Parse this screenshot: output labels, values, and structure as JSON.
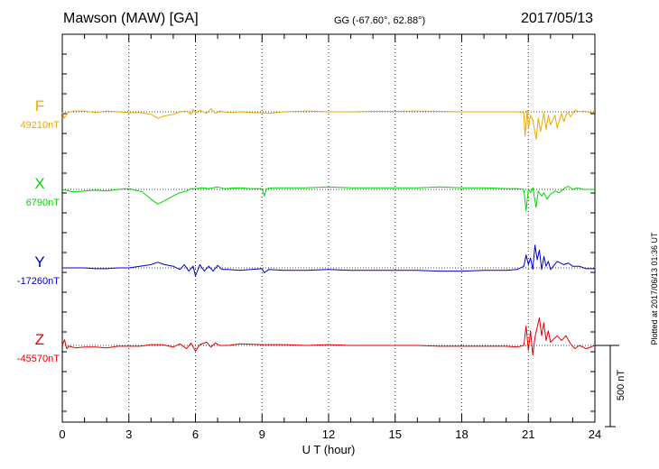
{
  "header": {
    "title": "Mawson (MAW)  [GA]",
    "coords": "GG (-67.60°,  62.88°)",
    "date": "2017/05/13"
  },
  "footer_note": "Plotted at 2017/06/13 01:36 UT",
  "scale_bar": {
    "label": "500 nT",
    "value": 500
  },
  "colors": {
    "F": "#f0a800",
    "X": "#00d800",
    "Y": "#0000cc",
    "Z": "#e00000"
  },
  "chart_data": {
    "type": "line",
    "xlabel": "U T (hour)",
    "xlim": [
      0,
      24
    ],
    "xticks": [
      "0",
      "3",
      "6",
      "9",
      "12",
      "15",
      "18",
      "21",
      "24"
    ],
    "series": [
      {
        "name": "F",
        "baseline_label": "49210nT",
        "points": [
          [
            0.0,
            0
          ],
          [
            0.08,
            -40
          ],
          [
            0.25,
            -5
          ],
          [
            0.5,
            5
          ],
          [
            1.0,
            5
          ],
          [
            1.5,
            -5
          ],
          [
            2.0,
            5
          ],
          [
            2.5,
            0
          ],
          [
            3.0,
            -5
          ],
          [
            3.5,
            -5
          ],
          [
            4.0,
            -15
          ],
          [
            4.3,
            -40
          ],
          [
            4.6,
            -25
          ],
          [
            5.0,
            -15
          ],
          [
            5.3,
            0
          ],
          [
            5.6,
            5
          ],
          [
            5.8,
            -15
          ],
          [
            5.9,
            15
          ],
          [
            6.0,
            -5
          ],
          [
            6.2,
            10
          ],
          [
            6.5,
            -10
          ],
          [
            6.7,
            20
          ],
          [
            6.9,
            -10
          ],
          [
            7.1,
            5
          ],
          [
            7.5,
            -5
          ],
          [
            8.0,
            0
          ],
          [
            8.5,
            -5
          ],
          [
            9.0,
            -5
          ],
          [
            9.3,
            -10
          ],
          [
            10,
            0
          ],
          [
            11,
            5
          ],
          [
            12,
            0
          ],
          [
            13,
            0
          ],
          [
            14,
            3
          ],
          [
            15,
            3
          ],
          [
            16,
            5
          ],
          [
            17,
            3
          ],
          [
            18,
            0
          ],
          [
            19,
            0
          ],
          [
            20,
            0
          ],
          [
            20.5,
            0
          ],
          [
            20.8,
            -5
          ],
          [
            20.85,
            -150
          ],
          [
            20.95,
            10
          ],
          [
            21.0,
            -100
          ],
          [
            21.1,
            -20
          ],
          [
            21.2,
            -50
          ],
          [
            21.35,
            -170
          ],
          [
            21.45,
            -40
          ],
          [
            21.55,
            -120
          ],
          [
            21.7,
            -5
          ],
          [
            21.8,
            -110
          ],
          [
            21.9,
            -20
          ],
          [
            22.0,
            -80
          ],
          [
            22.2,
            -20
          ],
          [
            22.3,
            -100
          ],
          [
            22.5,
            -10
          ],
          [
            22.6,
            -60
          ],
          [
            22.7,
            -20
          ],
          [
            22.8,
            -5
          ],
          [
            22.9,
            -30
          ],
          [
            23.1,
            10
          ],
          [
            23.3,
            0
          ],
          [
            23.5,
            5
          ],
          [
            23.8,
            -5
          ],
          [
            24,
            -5
          ]
        ]
      },
      {
        "name": "X",
        "baseline_label": "6790nT",
        "points": [
          [
            0.0,
            0
          ],
          [
            0.5,
            -15
          ],
          [
            1.0,
            -10
          ],
          [
            1.5,
            -5
          ],
          [
            2.0,
            -10
          ],
          [
            2.5,
            0
          ],
          [
            3.0,
            5
          ],
          [
            3.3,
            -5
          ],
          [
            3.6,
            -15
          ],
          [
            4.0,
            -60
          ],
          [
            4.3,
            -90
          ],
          [
            4.6,
            -70
          ],
          [
            5.0,
            -40
          ],
          [
            5.3,
            -20
          ],
          [
            5.6,
            -10
          ],
          [
            5.8,
            5
          ],
          [
            6.0,
            5
          ],
          [
            6.3,
            10
          ],
          [
            6.6,
            5
          ],
          [
            7.0,
            15
          ],
          [
            7.3,
            5
          ],
          [
            8.0,
            10
          ],
          [
            8.5,
            5
          ],
          [
            9.0,
            5
          ],
          [
            9.1,
            -40
          ],
          [
            9.2,
            5
          ],
          [
            9.5,
            10
          ],
          [
            10,
            10
          ],
          [
            11,
            10
          ],
          [
            12,
            15
          ],
          [
            13,
            10
          ],
          [
            14,
            10
          ],
          [
            15,
            10
          ],
          [
            16,
            10
          ],
          [
            17,
            15
          ],
          [
            18,
            10
          ],
          [
            19,
            10
          ],
          [
            20,
            5
          ],
          [
            20.5,
            5
          ],
          [
            20.8,
            0
          ],
          [
            20.9,
            -130
          ],
          [
            21.0,
            5
          ],
          [
            21.1,
            -20
          ],
          [
            21.2,
            10
          ],
          [
            21.35,
            -110
          ],
          [
            21.45,
            -10
          ],
          [
            21.6,
            -40
          ],
          [
            21.7,
            -20
          ],
          [
            21.85,
            -60
          ],
          [
            22.0,
            -30
          ],
          [
            22.2,
            -10
          ],
          [
            22.4,
            -20
          ],
          [
            22.6,
            5
          ],
          [
            22.8,
            20
          ],
          [
            23.0,
            0
          ],
          [
            23.2,
            10
          ],
          [
            23.5,
            0
          ],
          [
            24,
            0
          ]
        ]
      },
      {
        "name": "Y",
        "baseline_label": "-17260nT",
        "points": [
          [
            0.0,
            0
          ],
          [
            0.5,
            0
          ],
          [
            1.0,
            0
          ],
          [
            1.5,
            -5
          ],
          [
            2.0,
            -5
          ],
          [
            2.5,
            0
          ],
          [
            3.0,
            0
          ],
          [
            3.5,
            10
          ],
          [
            4.0,
            20
          ],
          [
            4.3,
            35
          ],
          [
            4.6,
            20
          ],
          [
            5.0,
            10
          ],
          [
            5.3,
            -10
          ],
          [
            5.5,
            20
          ],
          [
            5.7,
            -20
          ],
          [
            5.9,
            10
          ],
          [
            6.0,
            -50
          ],
          [
            6.2,
            20
          ],
          [
            6.4,
            -20
          ],
          [
            6.6,
            10
          ],
          [
            6.8,
            -20
          ],
          [
            7.0,
            15
          ],
          [
            7.2,
            -10
          ],
          [
            7.5,
            -10
          ],
          [
            8.0,
            -15
          ],
          [
            8.5,
            -10
          ],
          [
            9.0,
            -5
          ],
          [
            9.1,
            -30
          ],
          [
            9.3,
            -10
          ],
          [
            10,
            -15
          ],
          [
            11,
            -15
          ],
          [
            12,
            -10
          ],
          [
            13,
            -15
          ],
          [
            14,
            -15
          ],
          [
            15,
            -15
          ],
          [
            16,
            -15
          ],
          [
            17,
            -20
          ],
          [
            18,
            -20
          ],
          [
            19,
            -15
          ],
          [
            20,
            -15
          ],
          [
            20.5,
            -10
          ],
          [
            20.8,
            10
          ],
          [
            20.9,
            80
          ],
          [
            21.0,
            20
          ],
          [
            21.1,
            60
          ],
          [
            21.2,
            -10
          ],
          [
            21.3,
            140
          ],
          [
            21.4,
            50
          ],
          [
            21.5,
            110
          ],
          [
            21.6,
            -10
          ],
          [
            21.7,
            70
          ],
          [
            21.8,
            10
          ],
          [
            21.9,
            40
          ],
          [
            22.0,
            -10
          ],
          [
            22.3,
            40
          ],
          [
            22.6,
            20
          ],
          [
            22.8,
            30
          ],
          [
            23.0,
            10
          ],
          [
            23.3,
            10
          ],
          [
            23.6,
            -5
          ],
          [
            24,
            -5
          ]
        ]
      },
      {
        "name": "Z",
        "baseline_label": "-45570nT",
        "points": [
          [
            0.0,
            0
          ],
          [
            0.1,
            35
          ],
          [
            0.2,
            -20
          ],
          [
            0.3,
            -5
          ],
          [
            0.6,
            -15
          ],
          [
            1.0,
            -10
          ],
          [
            1.5,
            -10
          ],
          [
            2.0,
            -15
          ],
          [
            2.5,
            -5
          ],
          [
            3.0,
            -5
          ],
          [
            3.5,
            -5
          ],
          [
            4.0,
            5
          ],
          [
            4.5,
            5
          ],
          [
            5.0,
            -10
          ],
          [
            5.3,
            10
          ],
          [
            5.6,
            -20
          ],
          [
            5.8,
            15
          ],
          [
            6.0,
            -35
          ],
          [
            6.2,
            5
          ],
          [
            6.5,
            20
          ],
          [
            6.7,
            -10
          ],
          [
            6.9,
            15
          ],
          [
            7.1,
            0
          ],
          [
            7.5,
            0
          ],
          [
            8.0,
            10
          ],
          [
            9,
            5
          ],
          [
            10,
            5
          ],
          [
            11,
            0
          ],
          [
            12,
            5
          ],
          [
            13,
            0
          ],
          [
            14,
            0
          ],
          [
            15,
            0
          ],
          [
            16,
            0
          ],
          [
            17,
            -5
          ],
          [
            18,
            -5
          ],
          [
            19,
            -5
          ],
          [
            20,
            -5
          ],
          [
            20.5,
            -10
          ],
          [
            20.8,
            0
          ],
          [
            20.9,
            120
          ],
          [
            21.0,
            -30
          ],
          [
            21.1,
            90
          ],
          [
            21.2,
            -60
          ],
          [
            21.3,
            50
          ],
          [
            21.5,
            170
          ],
          [
            21.6,
            60
          ],
          [
            21.7,
            140
          ],
          [
            21.8,
            30
          ],
          [
            21.9,
            90
          ],
          [
            22.0,
            20
          ],
          [
            22.3,
            60
          ],
          [
            22.5,
            30
          ],
          [
            22.7,
            60
          ],
          [
            22.9,
            10
          ],
          [
            23.1,
            -20
          ],
          [
            23.3,
            0
          ],
          [
            23.6,
            -20
          ],
          [
            24,
            0
          ]
        ]
      }
    ]
  }
}
